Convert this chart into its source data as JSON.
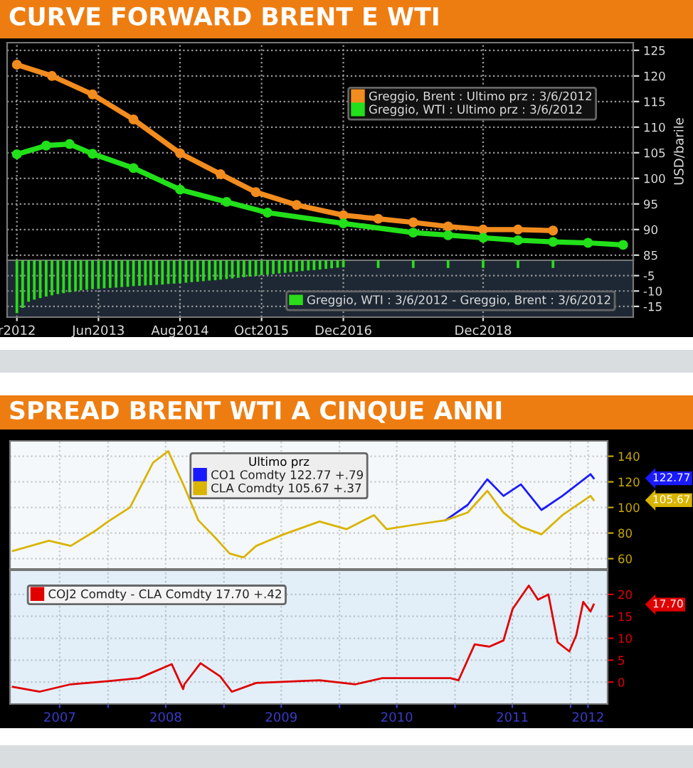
{
  "chart_data": [
    {
      "type": "line",
      "title": "CURVE FORWARD BRENT E WTI",
      "ylabel": "USD/barile",
      "marker": "circle",
      "grid": true,
      "legend": "top right",
      "tick_labels": "y",
      "xlim": [
        "2012-02-10",
        "2021-01-23"
      ],
      "xticks": [
        {
          "value": "2012-04-01",
          "label": null
        },
        {
          "value": "2013-06-01",
          "label": null
        },
        {
          "value": "2014-08-01",
          "label": null
        },
        {
          "value": "2015-10-01",
          "label": null
        },
        {
          "value": "2016-12-01",
          "label": null
        },
        {
          "value": "2018-12-01",
          "label": null
        }
      ],
      "ylim": [
        84,
        126.5
      ],
      "yticks": [
        85,
        90,
        95,
        100,
        105,
        110,
        115,
        120,
        125
      ],
      "series": [
        {
          "name": "Greggio, Brent : Ultimo prz : 3/6/2012",
          "color": "#f28c1e",
          "x": [
            "2012-04",
            "2012-10",
            "2013-05",
            "2013-12",
            "2014-08",
            "2015-03",
            "2015-09",
            "2016-04",
            "2016-12",
            "2017-06",
            "2017-12",
            "2018-06",
            "2018-12",
            "2019-06",
            "2019-12"
          ],
          "values": [
            122.2,
            120.0,
            116.4,
            111.5,
            104.9,
            100.8,
            97.3,
            94.8,
            92.8,
            92.1,
            91.4,
            90.6,
            90.0,
            90.0,
            89.8
          ]
        },
        {
          "name": "Greggio, WTI : Ultimo prz : 3/6/2012",
          "color": "#22e01a",
          "x": [
            "2012-04",
            "2012-09",
            "2013-01",
            "2013-05",
            "2013-12",
            "2014-08",
            "2015-04",
            "2015-11",
            "2016-12",
            "2017-12",
            "2018-06",
            "2018-12",
            "2019-06",
            "2019-12",
            "2020-06",
            "2020-12"
          ],
          "values": [
            104.7,
            106.4,
            106.7,
            104.8,
            102.0,
            97.8,
            95.4,
            93.3,
            91.2,
            89.4,
            88.9,
            88.4,
            87.9,
            87.6,
            87.4,
            87.0
          ]
        }
      ]
    },
    {
      "type": "bar",
      "legend": "bottom right",
      "grid": true,
      "xlim": [
        "2012-02-10",
        "2021-01-23"
      ],
      "xticks": [
        {
          "value": "2012-04-01",
          "label": "r2012"
        },
        {
          "value": "2013-06-01",
          "label": "Jun2013"
        },
        {
          "value": "2014-08-01",
          "label": "Aug2014"
        },
        {
          "value": "2015-10-01",
          "label": "Oct2015"
        },
        {
          "value": "2016-12-01",
          "label": "Dec2016"
        },
        {
          "value": "2018-12-01",
          "label": "Dec2018"
        }
      ],
      "ylim": [
        -18.5,
        0
      ],
      "yticks": [
        -15,
        -10,
        -5
      ],
      "series": [
        {
          "name": "Greggio, WTI : 3/6/2012 - Greggio, Brent : 3/6/2012",
          "color": "#2bdc1a",
          "x": [
            "2012-04",
            "2012-05",
            "2012-06",
            "2012-07",
            "2012-08",
            "2012-09",
            "2012-10",
            "2012-11",
            "2012-12",
            "2013-01",
            "2013-02",
            "2013-03",
            "2013-04",
            "2013-05",
            "2013-06",
            "2013-07",
            "2013-08",
            "2013-09",
            "2013-10",
            "2013-11",
            "2013-12",
            "2014-01",
            "2014-02",
            "2014-03",
            "2014-04",
            "2014-05",
            "2014-06",
            "2014-07",
            "2014-08",
            "2014-09",
            "2014-10",
            "2014-11",
            "2014-12",
            "2015-01",
            "2015-02",
            "2015-03",
            "2015-04",
            "2015-05",
            "2015-06",
            "2015-07",
            "2015-08",
            "2015-09",
            "2015-10",
            "2015-11",
            "2015-12",
            "2016-01",
            "2016-02",
            "2016-03",
            "2016-04",
            "2016-05",
            "2016-06",
            "2016-07",
            "2016-08",
            "2016-09",
            "2016-10",
            "2016-11",
            "2016-12",
            "2017-06",
            "2017-12",
            "2018-06",
            "2018-12",
            "2019-06",
            "2019-12"
          ],
          "values": [
            -17.2,
            -15.5,
            -13.5,
            -12.8,
            -12.3,
            -11.8,
            -11.4,
            -11.0,
            -10.7,
            -10.4,
            -10.1,
            -9.8,
            -9.6,
            -9.4,
            -9.3,
            -9.1,
            -9.0,
            -8.9,
            -8.7,
            -8.6,
            -8.4,
            -8.3,
            -8.2,
            -8.1,
            -8.0,
            -7.9,
            -7.7,
            -7.6,
            -7.4,
            -7.3,
            -7.1,
            -7.0,
            -6.8,
            -6.6,
            -6.5,
            -6.3,
            -6.1,
            -5.9,
            -5.7,
            -5.5,
            -5.3,
            -5.1,
            -4.9,
            -4.7,
            -4.5,
            -4.3,
            -4.1,
            -3.9,
            -3.7,
            -3.5,
            -3.3,
            -3.2,
            -3.0,
            -2.8,
            -2.6,
            -2.4,
            -2.3,
            -2.5,
            -2.5,
            -2.5,
            -2.5,
            -2.5,
            -2.5
          ]
        }
      ]
    },
    {
      "type": "line",
      "title": "SPREAD BRENT WTI A CINQUE ANNI",
      "legend_title": "Ultimo prz",
      "legend": "top",
      "grid": true,
      "tick_labels": "y",
      "xlim": [
        "2007-02-25",
        "2012-04-27"
      ],
      "xticks": [
        {
          "value": "2007-08-01",
          "label": null
        },
        {
          "value": "2008-01-01",
          "label": null
        },
        {
          "value": "2008-07-01",
          "label": null
        },
        {
          "value": "2009-01-01",
          "label": null
        },
        {
          "value": "2009-07-01",
          "label": null
        },
        {
          "value": "2010-01-01",
          "label": null
        },
        {
          "value": "2010-07-01",
          "label": null
        },
        {
          "value": "2011-01-01",
          "label": null
        },
        {
          "value": "2011-07-01",
          "label": null
        },
        {
          "value": "2012-01-01",
          "label": null
        },
        {
          "value": "2012-02-25",
          "label": null
        }
      ],
      "ylim": [
        52,
        152
      ],
      "yticks": [
        60,
        80,
        100,
        120,
        140
      ],
      "annotations": [
        "122.77",
        "105.67"
      ],
      "series": [
        {
          "name": "CO1 Comdty 122.77 +.79",
          "color": "#1a1aff",
          "x": [
            "2010-12-02",
            "2011-02-10",
            "2011-04-13",
            "2011-06-03",
            "2011-07-28",
            "2011-10-01",
            "2011-12-06",
            "2012-03-04",
            "2012-03-14"
          ],
          "values": [
            90,
            102,
            122,
            109,
            118,
            98,
            109,
            126,
            122.77
          ]
        },
        {
          "name": "CLA Comdty 105.67 +.37",
          "color": "#d9b400",
          "x": [
            "2007-03-06",
            "2007-06-28",
            "2007-09-05",
            "2007-11-17",
            "2008-01-01",
            "2008-03-10",
            "2008-05-22",
            "2008-07-09",
            "2008-08-29",
            "2008-10-12",
            "2008-12-06",
            "2009-01-19",
            "2009-03-04",
            "2009-04-13",
            "2009-07-09",
            "2009-10-30",
            "2010-01-23",
            "2010-04-20",
            "2010-05-30",
            "2010-09-09",
            "2010-12-02",
            "2011-02-10",
            "2011-04-13",
            "2011-06-03",
            "2011-07-28",
            "2011-10-01",
            "2011-12-06",
            "2012-03-04",
            "2012-03-14"
          ],
          "values": [
            66,
            74,
            70,
            81,
            89,
            100,
            135,
            144,
            116,
            90,
            76,
            64,
            61,
            70,
            79,
            89,
            83,
            94,
            83,
            87,
            90,
            96,
            113,
            96,
            85,
            79,
            94,
            109,
            105.67
          ]
        }
      ]
    },
    {
      "type": "line",
      "legend": "top left",
      "grid": true,
      "xlim": [
        "2007-02-25",
        "2012-04-27"
      ],
      "xticks": [
        {
          "value": "2007-08-01",
          "label": "2007"
        },
        {
          "value": "2008-01-01",
          "label": null
        },
        {
          "value": "2008-07-01",
          "label": "2008"
        },
        {
          "value": "2009-01-01",
          "label": null
        },
        {
          "value": "2009-07-01",
          "label": "2009"
        },
        {
          "value": "2010-01-01",
          "label": null
        },
        {
          "value": "2010-07-01",
          "label": "2010"
        },
        {
          "value": "2011-01-01",
          "label": null
        },
        {
          "value": "2011-07-01",
          "label": "2011"
        },
        {
          "value": "2012-01-01",
          "label": null
        },
        {
          "value": "2012-02-25",
          "label": "2012"
        }
      ],
      "ylim": [
        -5,
        25.5
      ],
      "yticks": [
        0,
        5,
        10,
        15,
        20
      ],
      "annotations": [
        "17.70"
      ],
      "series": [
        {
          "name": "COJ2 Comdty - CLA Comdty 17.70 +.42",
          "color": "#e00000",
          "x": [
            "2007-03-06",
            "2007-05-29",
            "2007-09-05",
            "2008-01-01",
            "2008-04-08",
            "2008-07-20",
            "2008-08-25",
            "2008-08-29",
            "2008-10-19",
            "2008-12-20",
            "2009-01-26",
            "2009-04-13",
            "2009-10-30",
            "2010-02-21",
            "2010-05-16",
            "2010-12-17",
            "2011-01-12",
            "2011-03-04",
            "2011-04-20",
            "2011-06-03",
            "2011-07-02",
            "2011-08-22",
            "2011-09-20",
            "2011-10-23",
            "2011-11-21",
            "2011-12-28",
            "2012-01-19",
            "2012-02-10",
            "2012-03-04",
            "2012-03-14"
          ],
          "values": [
            -1.1,
            -2.2,
            -0.5,
            0.2,
            0.9,
            4.1,
            -1.6,
            -0.5,
            4.3,
            1.3,
            -2.2,
            -0.2,
            0.4,
            -0.5,
            0.9,
            0.9,
            0.4,
            8.6,
            8.1,
            9.5,
            16.7,
            22.0,
            18.8,
            20.0,
            9.1,
            7.0,
            10.7,
            18.3,
            16.1,
            17.7
          ]
        }
      ]
    }
  ]
}
